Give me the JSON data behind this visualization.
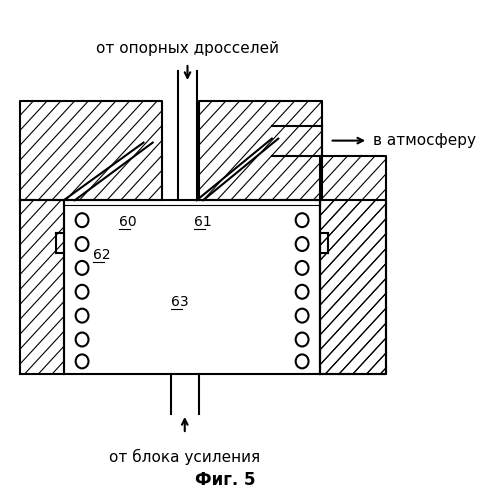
{
  "title": "Фиг. 5",
  "top_label": "от опорных дросселей",
  "bottom_label": "от блока усиления",
  "right_label": "в атмосферу",
  "label_60": "60",
  "label_61": "61",
  "label_62": "62",
  "label_63": "63",
  "bg_color": "#ffffff",
  "line_color": "#000000"
}
